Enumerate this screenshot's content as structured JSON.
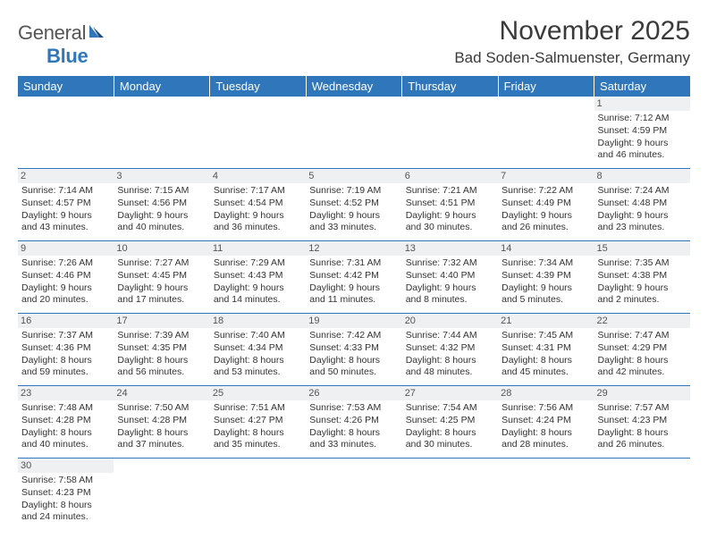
{
  "branding": {
    "logo_general": "General",
    "logo_blue": "Blue",
    "logo_text_color": "#555555",
    "logo_blue_color": "#2f76bb"
  },
  "header": {
    "month_title": "November 2025",
    "location": "Bad Soden-Salmuenster, Germany",
    "title_color": "#3a3a3a",
    "title_fontsize": 30,
    "location_fontsize": 17
  },
  "calendar": {
    "header_bg": "#2f76bb",
    "header_text_color": "#ffffff",
    "daynum_bg": "#eef0f2",
    "border_color": "#2f76bb",
    "body_text_color": "#333333",
    "columns": [
      "Sunday",
      "Monday",
      "Tuesday",
      "Wednesday",
      "Thursday",
      "Friday",
      "Saturday"
    ],
    "weeks": [
      [
        {
          "day": null
        },
        {
          "day": null
        },
        {
          "day": null
        },
        {
          "day": null
        },
        {
          "day": null
        },
        {
          "day": null
        },
        {
          "day": "1",
          "sunrise": "Sunrise: 7:12 AM",
          "sunset": "Sunset: 4:59 PM",
          "daylight1": "Daylight: 9 hours",
          "daylight2": "and 46 minutes."
        }
      ],
      [
        {
          "day": "2",
          "sunrise": "Sunrise: 7:14 AM",
          "sunset": "Sunset: 4:57 PM",
          "daylight1": "Daylight: 9 hours",
          "daylight2": "and 43 minutes."
        },
        {
          "day": "3",
          "sunrise": "Sunrise: 7:15 AM",
          "sunset": "Sunset: 4:56 PM",
          "daylight1": "Daylight: 9 hours",
          "daylight2": "and 40 minutes."
        },
        {
          "day": "4",
          "sunrise": "Sunrise: 7:17 AM",
          "sunset": "Sunset: 4:54 PM",
          "daylight1": "Daylight: 9 hours",
          "daylight2": "and 36 minutes."
        },
        {
          "day": "5",
          "sunrise": "Sunrise: 7:19 AM",
          "sunset": "Sunset: 4:52 PM",
          "daylight1": "Daylight: 9 hours",
          "daylight2": "and 33 minutes."
        },
        {
          "day": "6",
          "sunrise": "Sunrise: 7:21 AM",
          "sunset": "Sunset: 4:51 PM",
          "daylight1": "Daylight: 9 hours",
          "daylight2": "and 30 minutes."
        },
        {
          "day": "7",
          "sunrise": "Sunrise: 7:22 AM",
          "sunset": "Sunset: 4:49 PM",
          "daylight1": "Daylight: 9 hours",
          "daylight2": "and 26 minutes."
        },
        {
          "day": "8",
          "sunrise": "Sunrise: 7:24 AM",
          "sunset": "Sunset: 4:48 PM",
          "daylight1": "Daylight: 9 hours",
          "daylight2": "and 23 minutes."
        }
      ],
      [
        {
          "day": "9",
          "sunrise": "Sunrise: 7:26 AM",
          "sunset": "Sunset: 4:46 PM",
          "daylight1": "Daylight: 9 hours",
          "daylight2": "and 20 minutes."
        },
        {
          "day": "10",
          "sunrise": "Sunrise: 7:27 AM",
          "sunset": "Sunset: 4:45 PM",
          "daylight1": "Daylight: 9 hours",
          "daylight2": "and 17 minutes."
        },
        {
          "day": "11",
          "sunrise": "Sunrise: 7:29 AM",
          "sunset": "Sunset: 4:43 PM",
          "daylight1": "Daylight: 9 hours",
          "daylight2": "and 14 minutes."
        },
        {
          "day": "12",
          "sunrise": "Sunrise: 7:31 AM",
          "sunset": "Sunset: 4:42 PM",
          "daylight1": "Daylight: 9 hours",
          "daylight2": "and 11 minutes."
        },
        {
          "day": "13",
          "sunrise": "Sunrise: 7:32 AM",
          "sunset": "Sunset: 4:40 PM",
          "daylight1": "Daylight: 9 hours",
          "daylight2": "and 8 minutes."
        },
        {
          "day": "14",
          "sunrise": "Sunrise: 7:34 AM",
          "sunset": "Sunset: 4:39 PM",
          "daylight1": "Daylight: 9 hours",
          "daylight2": "and 5 minutes."
        },
        {
          "day": "15",
          "sunrise": "Sunrise: 7:35 AM",
          "sunset": "Sunset: 4:38 PM",
          "daylight1": "Daylight: 9 hours",
          "daylight2": "and 2 minutes."
        }
      ],
      [
        {
          "day": "16",
          "sunrise": "Sunrise: 7:37 AM",
          "sunset": "Sunset: 4:36 PM",
          "daylight1": "Daylight: 8 hours",
          "daylight2": "and 59 minutes."
        },
        {
          "day": "17",
          "sunrise": "Sunrise: 7:39 AM",
          "sunset": "Sunset: 4:35 PM",
          "daylight1": "Daylight: 8 hours",
          "daylight2": "and 56 minutes."
        },
        {
          "day": "18",
          "sunrise": "Sunrise: 7:40 AM",
          "sunset": "Sunset: 4:34 PM",
          "daylight1": "Daylight: 8 hours",
          "daylight2": "and 53 minutes."
        },
        {
          "day": "19",
          "sunrise": "Sunrise: 7:42 AM",
          "sunset": "Sunset: 4:33 PM",
          "daylight1": "Daylight: 8 hours",
          "daylight2": "and 50 minutes."
        },
        {
          "day": "20",
          "sunrise": "Sunrise: 7:44 AM",
          "sunset": "Sunset: 4:32 PM",
          "daylight1": "Daylight: 8 hours",
          "daylight2": "and 48 minutes."
        },
        {
          "day": "21",
          "sunrise": "Sunrise: 7:45 AM",
          "sunset": "Sunset: 4:31 PM",
          "daylight1": "Daylight: 8 hours",
          "daylight2": "and 45 minutes."
        },
        {
          "day": "22",
          "sunrise": "Sunrise: 7:47 AM",
          "sunset": "Sunset: 4:29 PM",
          "daylight1": "Daylight: 8 hours",
          "daylight2": "and 42 minutes."
        }
      ],
      [
        {
          "day": "23",
          "sunrise": "Sunrise: 7:48 AM",
          "sunset": "Sunset: 4:28 PM",
          "daylight1": "Daylight: 8 hours",
          "daylight2": "and 40 minutes."
        },
        {
          "day": "24",
          "sunrise": "Sunrise: 7:50 AM",
          "sunset": "Sunset: 4:28 PM",
          "daylight1": "Daylight: 8 hours",
          "daylight2": "and 37 minutes."
        },
        {
          "day": "25",
          "sunrise": "Sunrise: 7:51 AM",
          "sunset": "Sunset: 4:27 PM",
          "daylight1": "Daylight: 8 hours",
          "daylight2": "and 35 minutes."
        },
        {
          "day": "26",
          "sunrise": "Sunrise: 7:53 AM",
          "sunset": "Sunset: 4:26 PM",
          "daylight1": "Daylight: 8 hours",
          "daylight2": "and 33 minutes."
        },
        {
          "day": "27",
          "sunrise": "Sunrise: 7:54 AM",
          "sunset": "Sunset: 4:25 PM",
          "daylight1": "Daylight: 8 hours",
          "daylight2": "and 30 minutes."
        },
        {
          "day": "28",
          "sunrise": "Sunrise: 7:56 AM",
          "sunset": "Sunset: 4:24 PM",
          "daylight1": "Daylight: 8 hours",
          "daylight2": "and 28 minutes."
        },
        {
          "day": "29",
          "sunrise": "Sunrise: 7:57 AM",
          "sunset": "Sunset: 4:23 PM",
          "daylight1": "Daylight: 8 hours",
          "daylight2": "and 26 minutes."
        }
      ],
      [
        {
          "day": "30",
          "sunrise": "Sunrise: 7:58 AM",
          "sunset": "Sunset: 4:23 PM",
          "daylight1": "Daylight: 8 hours",
          "daylight2": "and 24 minutes."
        },
        {
          "day": null
        },
        {
          "day": null
        },
        {
          "day": null
        },
        {
          "day": null
        },
        {
          "day": null
        },
        {
          "day": null
        }
      ]
    ]
  }
}
